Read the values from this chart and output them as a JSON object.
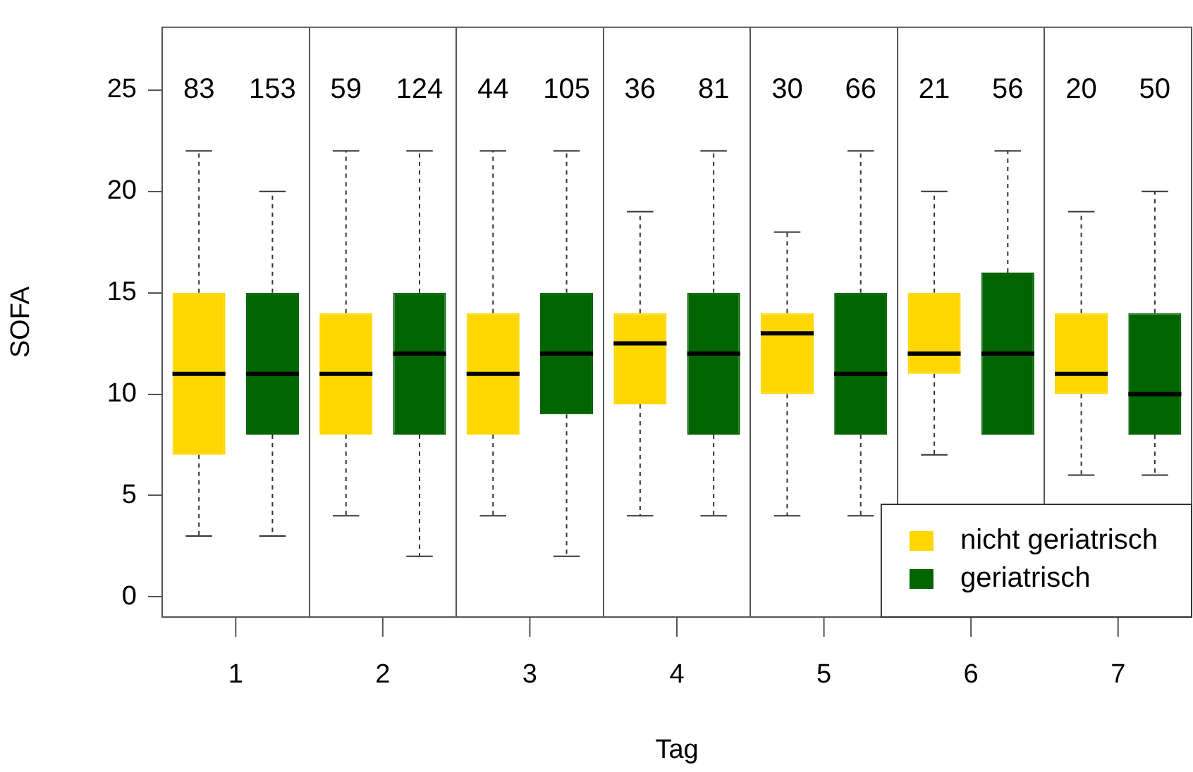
{
  "chart_data": {
    "type": "box",
    "xlabel": "Tag",
    "ylabel": "SOFA",
    "categories": [
      "1",
      "2",
      "3",
      "4",
      "5",
      "6",
      "7"
    ],
    "ylim": [
      -1,
      28.1
    ],
    "yticks": [
      0,
      5,
      10,
      15,
      20,
      25
    ],
    "grid": "x",
    "legend": "bottom right",
    "series": [
      {
        "name": "nicht geriatrisch",
        "color": "#ffd700",
        "value_labels": [
          "83",
          "59",
          "44",
          "36",
          "30",
          "21",
          "20"
        ],
        "boxes": [
          {
            "low": 3,
            "q1": 7,
            "median": 11,
            "q3": 15,
            "high": 22
          },
          {
            "low": 4,
            "q1": 8,
            "median": 11,
            "q3": 14,
            "high": 22
          },
          {
            "low": 4,
            "q1": 8,
            "median": 11,
            "q3": 14,
            "high": 22
          },
          {
            "low": 4,
            "q1": 9.5,
            "median": 12.5,
            "q3": 14,
            "high": 19
          },
          {
            "low": 4,
            "q1": 10,
            "median": 13,
            "q3": 14,
            "high": 18
          },
          {
            "low": 7,
            "q1": 11,
            "median": 12,
            "q3": 15,
            "high": 20
          },
          {
            "low": 6,
            "q1": 10,
            "median": 11,
            "q3": 14,
            "high": 19
          }
        ]
      },
      {
        "name": "geriatrisch",
        "color": "#006400",
        "value_labels": [
          "153",
          "124",
          "105",
          "81",
          "66",
          "56",
          "50"
        ],
        "boxes": [
          {
            "low": 3,
            "q1": 8,
            "median": 11,
            "q3": 15,
            "high": 20
          },
          {
            "low": 2,
            "q1": 8,
            "median": 12,
            "q3": 15,
            "high": 22
          },
          {
            "low": 2,
            "q1": 9,
            "median": 12,
            "q3": 15,
            "high": 22
          },
          {
            "low": 4,
            "q1": 8,
            "median": 12,
            "q3": 15,
            "high": 22
          },
          {
            "low": 4,
            "q1": 8,
            "median": 11,
            "q3": 15,
            "high": 22
          },
          {
            "low": null,
            "q1": 8,
            "median": 12,
            "q3": 16,
            "high": 22
          },
          {
            "low": 6,
            "q1": 8,
            "median": 10,
            "q3": 14,
            "high": 20
          }
        ]
      }
    ]
  }
}
